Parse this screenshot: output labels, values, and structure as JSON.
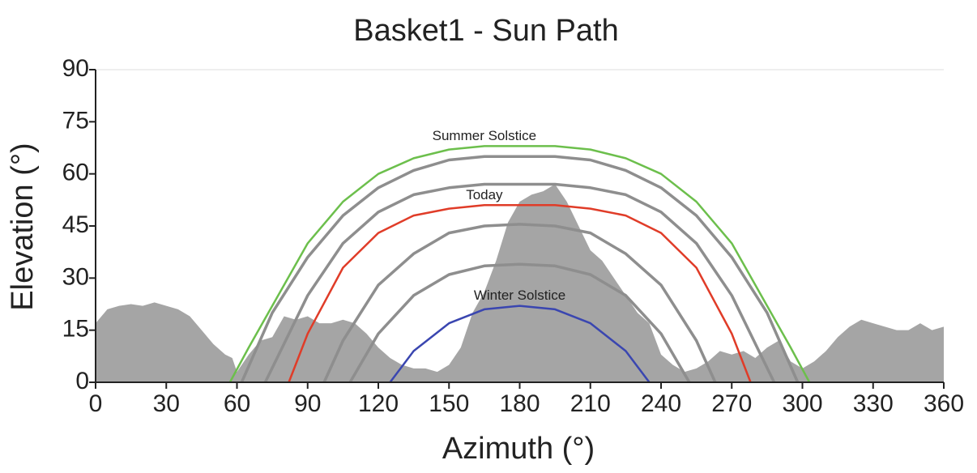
{
  "chart_data": {
    "type": "line",
    "title": "Basket1 - Sun Path",
    "x_label": "Azimuth (°)",
    "y_label": "Elevation (°)",
    "xlim": [
      0,
      360
    ],
    "xticks": [
      0,
      30,
      60,
      90,
      120,
      150,
      180,
      210,
      240,
      270,
      300,
      330,
      360
    ],
    "ylim": [
      0,
      90
    ],
    "yticks": [
      0,
      15,
      30,
      45,
      60,
      75,
      90
    ],
    "series": [
      {
        "style": "area",
        "color": "#a5a5a5",
        "x": [
          0,
          5,
          10,
          15,
          20,
          25,
          30,
          35,
          40,
          45,
          50,
          55,
          58,
          60,
          65,
          70,
          75,
          80,
          85,
          90,
          95,
          100,
          105,
          110,
          115,
          120,
          125,
          130,
          135,
          140,
          145,
          150,
          155,
          160,
          165,
          170,
          175,
          180,
          185,
          190,
          195,
          200,
          205,
          210,
          215,
          220,
          225,
          230,
          235,
          240,
          245,
          250,
          255,
          260,
          265,
          270,
          275,
          280,
          285,
          290,
          295,
          300,
          305,
          310,
          315,
          320,
          325,
          330,
          335,
          340,
          345,
          350,
          355,
          360
        ],
        "values": [
          17,
          21,
          22,
          22.5,
          22,
          23,
          22,
          21,
          19,
          15,
          11,
          8,
          7,
          3,
          8,
          12,
          13,
          19,
          18,
          19,
          17,
          17,
          18,
          17,
          14,
          10,
          7,
          5,
          4,
          4,
          3,
          5,
          10,
          20,
          26,
          35,
          46,
          52,
          54,
          55,
          57,
          52,
          45,
          38,
          35,
          30,
          25,
          20,
          17,
          8,
          5,
          3,
          4,
          6,
          9,
          8,
          9,
          7,
          10,
          12,
          6,
          4,
          6,
          9,
          13,
          16,
          18,
          17,
          16,
          15,
          15,
          17,
          15,
          16
        ]
      },
      {
        "color": "#8e8e8e",
        "x": [
          62,
          75,
          90,
          105,
          120,
          135,
          150,
          165,
          180,
          195,
          210,
          225,
          240,
          255,
          270,
          285,
          298
        ],
        "values": [
          0,
          20,
          36,
          48,
          56,
          61,
          64,
          65,
          65,
          65,
          64,
          61,
          56,
          48,
          36,
          20,
          0
        ]
      },
      {
        "color": "#8e8e8e",
        "x": [
          72,
          90,
          105,
          120,
          135,
          150,
          165,
          180,
          195,
          210,
          225,
          240,
          255,
          270,
          288
        ],
        "values": [
          0,
          25,
          40,
          49,
          54,
          56,
          57,
          57,
          57,
          56,
          54,
          49,
          40,
          25,
          0
        ]
      },
      {
        "color": "#8e8e8e",
        "x": [
          97,
          105,
          120,
          135,
          150,
          165,
          180,
          195,
          210,
          225,
          240,
          255,
          263
        ],
        "values": [
          0,
          12,
          28,
          37,
          43,
          45,
          45.5,
          45,
          43,
          37,
          28,
          12,
          0
        ]
      },
      {
        "color": "#8e8e8e",
        "x": [
          108,
          120,
          135,
          150,
          165,
          180,
          195,
          210,
          225,
          240,
          252
        ],
        "values": [
          0,
          14,
          25,
          31,
          33.5,
          34,
          33.5,
          31,
          25,
          14,
          0
        ]
      },
      {
        "name": "Summer Solstice",
        "color": "#6cbf4c",
        "x": [
          57,
          65,
          75,
          90,
          105,
          120,
          135,
          150,
          165,
          180,
          195,
          210,
          225,
          240,
          255,
          270,
          285,
          295,
          303
        ],
        "values": [
          0,
          10,
          22,
          40,
          52,
          60,
          64.5,
          67,
          68,
          68,
          68,
          67,
          64.5,
          60,
          52,
          40,
          22,
          10,
          0
        ]
      },
      {
        "name": "Today",
        "color": "#e03c28",
        "x": [
          82,
          90,
          105,
          120,
          135,
          150,
          165,
          180,
          195,
          210,
          225,
          240,
          255,
          270,
          278
        ],
        "values": [
          0,
          14,
          33,
          43,
          48,
          50,
          51,
          51,
          51,
          50,
          48,
          43,
          33,
          14,
          0
        ]
      },
      {
        "name": "Winter Solstice",
        "color": "#3a46b0",
        "x": [
          125,
          135,
          150,
          165,
          180,
          195,
          210,
          225,
          235
        ],
        "values": [
          0,
          9,
          17,
          21,
          22,
          21,
          17,
          9,
          0
        ]
      }
    ]
  }
}
